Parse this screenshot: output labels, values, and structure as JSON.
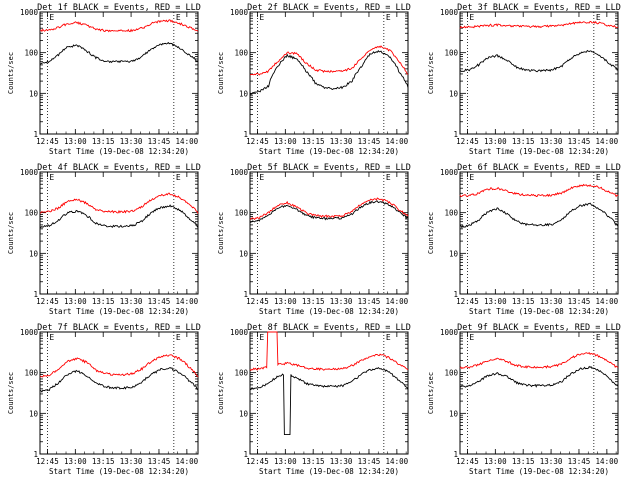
{
  "layout": {
    "rows": 3,
    "cols": 3
  },
  "common": {
    "ylabel": "Counts/sec",
    "xlabel": "Start Time (19-Dec-08 12:34:20)",
    "x_ticks": [
      "12:45",
      "13:00",
      "13:15",
      "13:30",
      "13:45",
      "14:00"
    ],
    "y_ticks": [
      "1",
      "10",
      "100",
      "1000"
    ],
    "marker_labels": [
      "E",
      "E"
    ],
    "colors": {
      "events": "#000000",
      "lld": "#ff0000",
      "marker": "#000000"
    }
  },
  "chart_data": [
    {
      "type": "line",
      "title": "Det 1f BLACK = Events, RED = LLD",
      "yscale": "log",
      "ylim": [
        1,
        1000
      ],
      "x_minutes": [
        0,
        5,
        10,
        15,
        20,
        25,
        30,
        35,
        40,
        45,
        50,
        55,
        60,
        65,
        70,
        75,
        80,
        85
      ],
      "series": [
        {
          "name": "BLACK = Events",
          "values": [
            55,
            60,
            90,
            140,
            150,
            110,
            75,
            62,
            60,
            60,
            62,
            80,
            120,
            160,
            170,
            130,
            90,
            60
          ]
        },
        {
          "name": "RED = LLD",
          "values": [
            350,
            360,
            420,
            520,
            550,
            470,
            380,
            350,
            345,
            345,
            350,
            400,
            520,
            600,
            610,
            530,
            420,
            340
          ]
        }
      ],
      "markers": [
        4,
        72
      ]
    },
    {
      "type": "line",
      "title": "Det 2f BLACK = Events, RED = LLD",
      "yscale": "log",
      "ylim": [
        1,
        1000
      ],
      "x_minutes": [
        0,
        5,
        10,
        15,
        20,
        25,
        30,
        35,
        40,
        45,
        50,
        55,
        60,
        65,
        70,
        75,
        80,
        85
      ],
      "series": [
        {
          "name": "BLACK = Events",
          "values": [
            10,
            11,
            15,
            45,
            85,
            70,
            35,
            18,
            14,
            13,
            14,
            20,
            45,
            95,
            110,
            80,
            35,
            14
          ]
        },
        {
          "name": "RED = LLD",
          "values": [
            28,
            30,
            35,
            60,
            100,
            95,
            55,
            38,
            35,
            34,
            35,
            42,
            70,
            120,
            140,
            115,
            60,
            28
          ]
        }
      ],
      "markers": [
        4,
        72
      ]
    },
    {
      "type": "line",
      "title": "Det 3f BLACK = Events, RED = LLD",
      "yscale": "log",
      "ylim": [
        1,
        1000
      ],
      "x_minutes": [
        0,
        5,
        10,
        15,
        20,
        25,
        30,
        35,
        40,
        45,
        50,
        55,
        60,
        65,
        70,
        75,
        80,
        85
      ],
      "series": [
        {
          "name": "BLACK = Events",
          "values": [
            35,
            38,
            50,
            75,
            85,
            65,
            45,
            38,
            36,
            36,
            38,
            48,
            75,
            100,
            110,
            85,
            55,
            38
          ]
        },
        {
          "name": "RED = LLD",
          "values": [
            420,
            430,
            440,
            470,
            480,
            470,
            450,
            440,
            440,
            440,
            450,
            470,
            520,
            560,
            570,
            530,
            470,
            420
          ]
        }
      ],
      "markers": [
        4,
        72
      ]
    },
    {
      "type": "line",
      "title": "Det 4f BLACK = Events, RED = LLD",
      "yscale": "log",
      "ylim": [
        1,
        1000
      ],
      "x_minutes": [
        0,
        5,
        10,
        15,
        20,
        25,
        30,
        35,
        40,
        45,
        50,
        55,
        60,
        65,
        70,
        75,
        80,
        85
      ],
      "series": [
        {
          "name": "BLACK = Events",
          "values": [
            45,
            48,
            65,
            100,
            110,
            85,
            55,
            48,
            46,
            46,
            48,
            62,
            100,
            135,
            145,
            115,
            75,
            45
          ]
        },
        {
          "name": "RED = LLD",
          "values": [
            100,
            105,
            130,
            190,
            210,
            170,
            120,
            108,
            105,
            105,
            110,
            140,
            210,
            270,
            290,
            240,
            160,
            100
          ]
        }
      ],
      "markers": [
        4,
        72
      ]
    },
    {
      "type": "line",
      "title": "Det 5f BLACK = Events, RED = LLD",
      "yscale": "log",
      "ylim": [
        1,
        1000
      ],
      "x_minutes": [
        0,
        5,
        10,
        15,
        20,
        25,
        30,
        35,
        40,
        45,
        50,
        55,
        60,
        65,
        70,
        75,
        80,
        85
      ],
      "series": [
        {
          "name": "BLACK = Events",
          "values": [
            60,
            65,
            85,
            130,
            150,
            120,
            85,
            75,
            72,
            72,
            75,
            95,
            140,
            180,
            190,
            155,
            105,
            70
          ]
        },
        {
          "name": "RED = LLD",
          "values": [
            70,
            75,
            100,
            150,
            175,
            140,
            100,
            85,
            82,
            82,
            85,
            110,
            160,
            210,
            220,
            180,
            120,
            80
          ]
        }
      ],
      "markers": [
        4,
        72
      ]
    },
    {
      "type": "line",
      "title": "Det 6f BLACK = Events, RED = LLD",
      "yscale": "log",
      "ylim": [
        1,
        1000
      ],
      "x_minutes": [
        0,
        5,
        10,
        15,
        20,
        25,
        30,
        35,
        40,
        45,
        50,
        55,
        60,
        65,
        70,
        75,
        80,
        85
      ],
      "series": [
        {
          "name": "BLACK = Events",
          "values": [
            45,
            48,
            65,
            105,
            125,
            95,
            62,
            52,
            50,
            50,
            52,
            68,
            110,
            150,
            165,
            125,
            80,
            45
          ]
        },
        {
          "name": "RED = LLD",
          "values": [
            260,
            265,
            300,
            380,
            400,
            350,
            290,
            270,
            265,
            265,
            270,
            310,
            400,
            460,
            480,
            420,
            320,
            250
          ]
        }
      ],
      "markers": [
        4,
        72
      ]
    },
    {
      "type": "line",
      "title": "Det 7f BLACK = Events, RED = LLD",
      "yscale": "log",
      "ylim": [
        1,
        1000
      ],
      "x_minutes": [
        0,
        5,
        10,
        15,
        20,
        25,
        30,
        35,
        40,
        45,
        50,
        55,
        60,
        65,
        70,
        75,
        80,
        85
      ],
      "series": [
        {
          "name": "BLACK = Events",
          "values": [
            35,
            38,
            55,
            90,
            110,
            85,
            55,
            45,
            42,
            42,
            45,
            60,
            90,
            120,
            130,
            100,
            65,
            38
          ]
        },
        {
          "name": "RED = LLD",
          "values": [
            80,
            85,
            120,
            190,
            220,
            180,
            115,
            95,
            90,
            90,
            95,
            125,
            190,
            250,
            270,
            220,
            140,
            80
          ]
        }
      ],
      "markers": [
        4,
        72
      ]
    },
    {
      "type": "line",
      "title": "Det 8f BLACK = Events, RED = LLD",
      "yscale": "log",
      "ylim": [
        1,
        1000
      ],
      "x_minutes": [
        0,
        5,
        10,
        15,
        20,
        25,
        30,
        35,
        40,
        45,
        50,
        55,
        60,
        65,
        70,
        75,
        80,
        85
      ],
      "series": [
        {
          "name": "BLACK = Events",
          "values": [
            40,
            42,
            55,
            80,
            95,
            75,
            55,
            48,
            46,
            46,
            48,
            60,
            90,
            120,
            130,
            100,
            65,
            40
          ]
        },
        {
          "name": "RED = LLD",
          "values": [
            120,
            125,
            140,
            160,
            170,
            155,
            130,
            125,
            122,
            122,
            125,
            150,
            200,
            260,
            280,
            230,
            160,
            120
          ]
        }
      ],
      "spikes": [
        {
          "series": "RED = LLD",
          "x_start": 9,
          "x_end": 15,
          "value": 1000
        },
        {
          "series": "BLACK = Events",
          "x_start": 18,
          "x_end": 22,
          "value": 3
        }
      ],
      "markers": [
        4,
        72
      ]
    },
    {
      "type": "line",
      "title": "Det 9f BLACK = Events, RED = LLD",
      "yscale": "log",
      "ylim": [
        1,
        1000
      ],
      "x_minutes": [
        0,
        5,
        10,
        15,
        20,
        25,
        30,
        35,
        40,
        45,
        50,
        55,
        60,
        65,
        70,
        75,
        80,
        85
      ],
      "series": [
        {
          "name": "BLACK = Events",
          "values": [
            45,
            48,
            60,
            85,
            95,
            80,
            58,
            50,
            48,
            48,
            50,
            62,
            95,
            125,
            135,
            110,
            72,
            45
          ]
        },
        {
          "name": "RED = LLD",
          "values": [
            130,
            135,
            155,
            200,
            220,
            190,
            150,
            140,
            138,
            138,
            142,
            165,
            230,
            290,
            300,
            250,
            180,
            130
          ]
        }
      ],
      "markers": [
        4,
        72
      ]
    }
  ]
}
